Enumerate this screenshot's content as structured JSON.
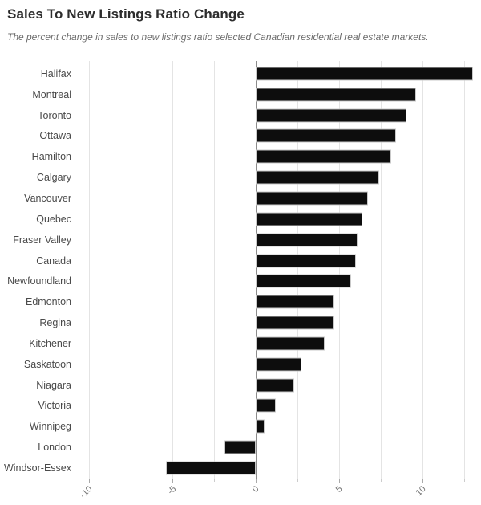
{
  "header": {
    "title": "Sales To New Listings Ratio Change",
    "subtitle": "The percent change in sales to new listings ratio selected Canadian residential real estate markets."
  },
  "chart_data": {
    "type": "bar",
    "orientation": "horizontal",
    "title": "Sales To New Listings Ratio Change",
    "subtitle": "The percent change in sales to new listings ratio selected Canadian residential real estate markets.",
    "xlabel": "",
    "ylabel": "",
    "categories": [
      "Halifax",
      "Montreal",
      "Toronto",
      "Ottawa",
      "Hamilton",
      "Calgary",
      "Vancouver",
      "Quebec",
      "Fraser Valley",
      "Canada",
      "Newfoundland",
      "Edmonton",
      "Regina",
      "Kitchener",
      "Saskatoon",
      "Niagara",
      "Victoria",
      "Winnipeg",
      "London",
      "Windsor-Essex"
    ],
    "values": [
      13.0,
      9.6,
      9.0,
      8.4,
      8.1,
      7.4,
      6.7,
      6.4,
      6.1,
      6.0,
      5.7,
      4.7,
      4.7,
      4.1,
      2.7,
      2.3,
      1.2,
      0.5,
      -1.9,
      -5.4
    ],
    "xlim": [
      -10.45,
      13.35
    ],
    "x_ticks": [
      -10,
      -5,
      0,
      5,
      10
    ],
    "x_tick_labels": [
      "-10",
      "-5",
      "0",
      "5",
      "10"
    ],
    "gridline_values": [
      -10,
      -7.5,
      -5,
      -2.5,
      0,
      2.5,
      5,
      7.5,
      10,
      12.5
    ],
    "grid": true,
    "legend": false
  },
  "colors": {
    "bar_fill": "#0d0d0d",
    "bar_stroke": "#c9c9c9",
    "gridline": "#e4e4e4",
    "zero_line": "#8c8c8c",
    "title_text": "#2d2d2d",
    "subtitle_text": "#6c6c6c",
    "label_text": "#4a4a4a",
    "tick_text": "#757575"
  }
}
